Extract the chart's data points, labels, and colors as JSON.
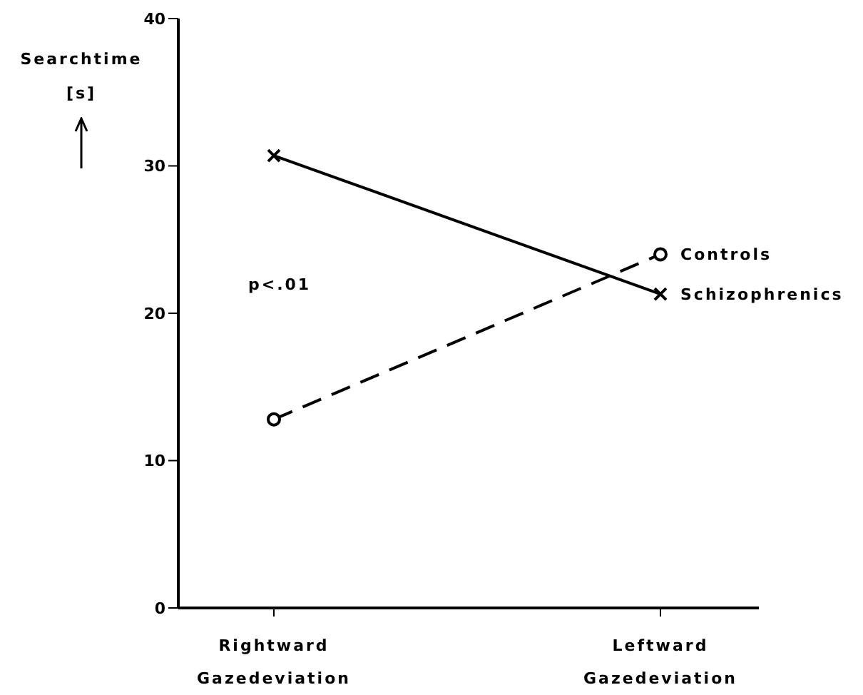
{
  "chart_data": {
    "type": "line",
    "ylabel": "Searchtime [s]",
    "categories": [
      "Rightward Gazedeviation",
      "Leftward Gazedeviation"
    ],
    "series": [
      {
        "name": "Schizophrenics",
        "color": "#000000",
        "values": [
          30.7,
          21.3
        ],
        "marker": "cross",
        "line_style": "solid"
      },
      {
        "name": "Controls",
        "color": "#000000",
        "values": [
          12.8,
          24.0
        ],
        "marker": "circle",
        "line_style": "dashed"
      }
    ],
    "ylim": [
      0,
      40
    ],
    "yticks": [
      0,
      10,
      20,
      30,
      40
    ],
    "annotations": [
      "p<.01"
    ]
  }
}
